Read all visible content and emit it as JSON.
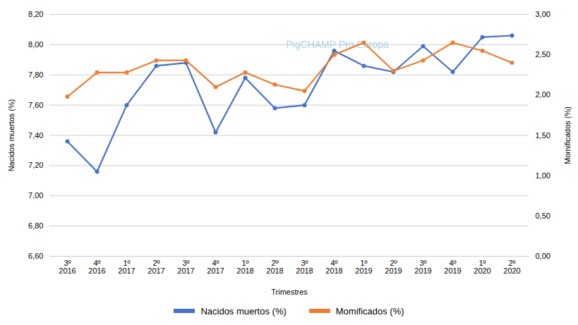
{
  "chart_data": {
    "type": "line",
    "categories": [
      "3º\n2016",
      "4º\n2016",
      "1º\n2017",
      "2º\n2017",
      "3º\n2017",
      "4º\n2017",
      "1º\n2018",
      "2º\n2018",
      "3º\n2018",
      "4º\n2018",
      "1º\n2019",
      "2º\n2019",
      "3º\n2019",
      "4º\n2019",
      "1º\n2020",
      "2º\n2020"
    ],
    "xlabel": "Trimestres",
    "ylabel": "Nacidos muertos (%)",
    "y2label": "Momificados (%)",
    "series": [
      {
        "name": "Nacidos muertos (%)",
        "color": "#4472C4",
        "values": [
          7.36,
          7.16,
          7.6,
          7.86,
          7.88,
          7.42,
          7.78,
          7.58,
          7.6,
          7.96,
          7.86,
          7.82,
          7.99,
          7.82,
          8.05,
          8.06
        ]
      },
      {
        "name": "Momificados (%)",
        "color": "#ED7D31",
        "axis": "y2",
        "values": [
          1.98,
          2.28,
          2.28,
          2.43,
          2.43,
          2.1,
          2.28,
          2.13,
          2.05,
          2.5,
          2.65,
          2.3,
          2.43,
          2.65,
          2.55,
          2.4
        ]
      }
    ],
    "ylim": [
      6.6,
      8.2
    ],
    "yticks": [
      {
        "value": 6.6,
        "label": "6,60"
      },
      {
        "value": 6.8,
        "label": "6,80"
      },
      {
        "value": 7.0,
        "label": "7,00"
      },
      {
        "value": 7.2,
        "label": "7,20"
      },
      {
        "value": 7.4,
        "label": "7,40"
      },
      {
        "value": 7.6,
        "label": "7,60"
      },
      {
        "value": 7.8,
        "label": "7,80"
      },
      {
        "value": 8.0,
        "label": "8,00"
      },
      {
        "value": 8.2,
        "label": "8,20"
      }
    ],
    "y2lim": [
      0,
      3
    ],
    "y2ticks": [
      {
        "value": 0,
        "label": "0,00"
      },
      {
        "value": 0.5,
        "label": "0,50"
      },
      {
        "value": 1.0,
        "label": "1,00"
      },
      {
        "value": 1.5,
        "label": "1,50"
      },
      {
        "value": 2.0,
        "label": "2,00"
      },
      {
        "value": 2.5,
        "label": "2,50"
      },
      {
        "value": 3.0,
        "label": "3,00"
      }
    ],
    "grid": true,
    "legend": "bottom",
    "marker": "circle",
    "annotations": [
      "PigCHAMP Pro Europa"
    ]
  }
}
